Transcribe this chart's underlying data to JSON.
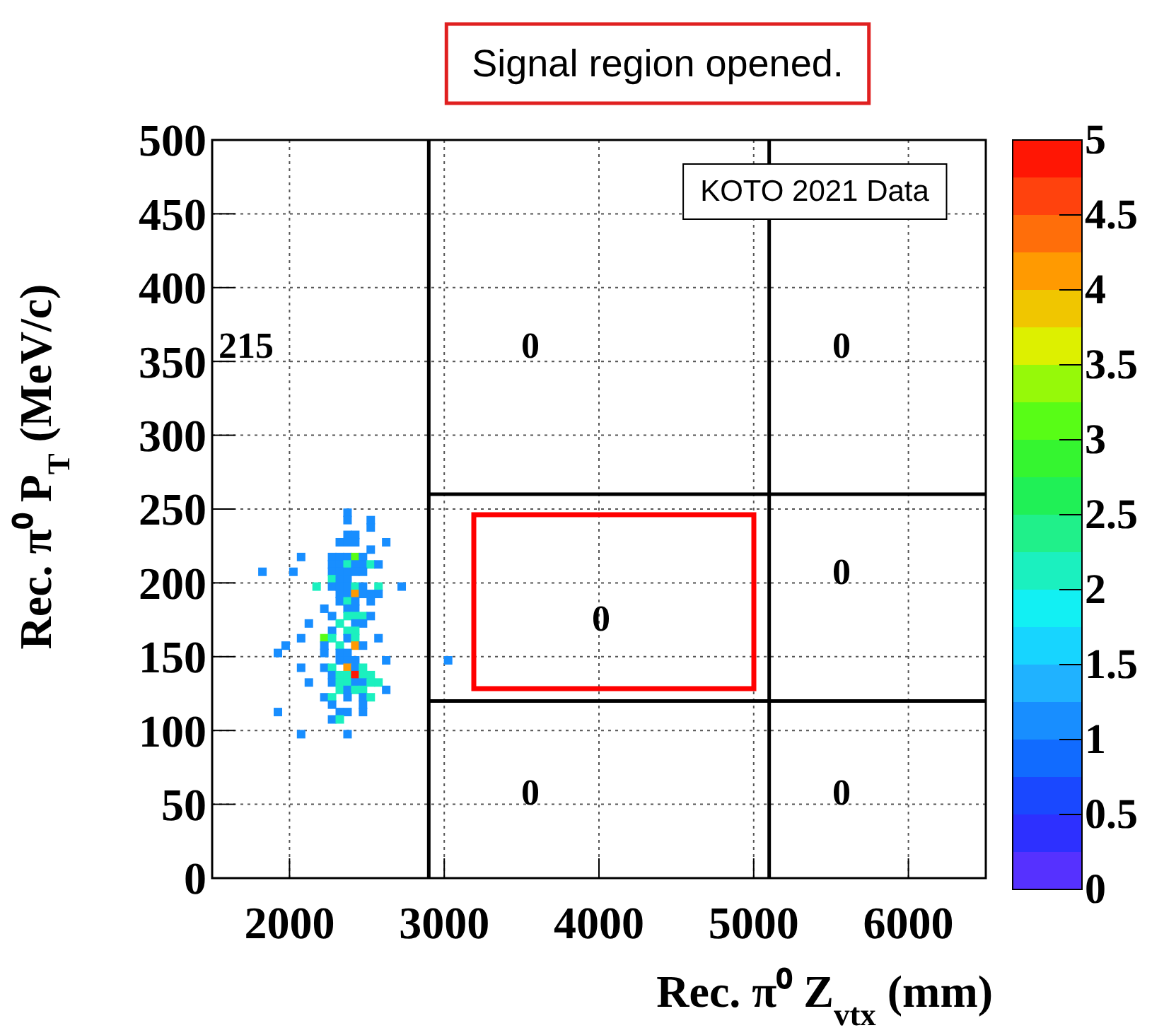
{
  "chart_data": {
    "type": "scatter",
    "title": "Signal region opened.",
    "xlabel": "Rec. π⁰ Z$_{vtx}$ (mm)",
    "ylabel": "Rec. π⁰ P$_{T}$ (MeV/c)",
    "xlim": [
      1500,
      6500
    ],
    "xticks": [
      2000,
      3000,
      4000,
      5000,
      6000
    ],
    "ylim": [
      0,
      500
    ],
    "yticks": [
      0,
      50,
      100,
      150,
      200,
      250,
      300,
      350,
      400,
      450,
      500
    ],
    "clim": [
      0,
      5
    ],
    "cticks": [
      0,
      0.5,
      1,
      1.5,
      2,
      2.5,
      3,
      3.5,
      4,
      4.5,
      5
    ],
    "grid": true,
    "series": [
      {
        "type": "scatter",
        "marker": "square",
        "x": [
          2375,
          2375,
          2525,
          2525,
          2375,
          2425,
          2325,
          2375,
          2425,
          2625,
          2525,
          2075,
          2275,
          2325,
          2375,
          2425,
          2475,
          2275,
          2325,
          2375,
          2425,
          2475,
          2525,
          2575,
          1825,
          2025,
          2275,
          2325,
          2375,
          2425,
          2475,
          2275,
          2325,
          2375,
          2175,
          2275,
          2325,
          2375,
          2425,
          2475,
          2575,
          2725,
          2325,
          2375,
          2425,
          2475,
          2525,
          2575,
          2325,
          2375,
          2425,
          2525,
          2225,
          2375,
          2425,
          2275,
          2375,
          2425,
          2475,
          2525,
          2125,
          2325,
          2425,
          2475,
          2275,
          2375,
          2425,
          2075,
          2225,
          2275,
          2375,
          2425,
          2575,
          1975,
          2225,
          2325,
          2425,
          2475,
          1925,
          2225,
          2325,
          2375,
          2625,
          2325,
          2375,
          2425,
          3025,
          2075,
          2225,
          2275,
          2375,
          2425,
          2475,
          2275,
          2325,
          2375,
          2425,
          2475,
          2525,
          2125,
          2275,
          2325,
          2375,
          2425,
          2475,
          2525,
          2575,
          2325,
          2375,
          2425,
          2475,
          2625,
          2225,
          2275,
          2375,
          2475,
          2525,
          2275,
          2475,
          1925,
          2325,
          2375,
          2475,
          2275,
          2325,
          2075,
          2375
        ],
        "values": [
          247.5,
          242.5,
          242.5,
          237.5,
          232.5,
          232.5,
          227.5,
          227.5,
          227.5,
          227.5,
          222.5,
          217.5,
          217.5,
          217.5,
          217.5,
          217.5,
          217.5,
          212.5,
          212.5,
          212.5,
          212.5,
          212.5,
          212.5,
          212.5,
          207.5,
          207.5,
          207.5,
          207.5,
          207.5,
          207.5,
          207.5,
          202.5,
          202.5,
          202.5,
          197.5,
          197.5,
          197.5,
          197.5,
          197.5,
          197.5,
          197.5,
          197.5,
          192.5,
          192.5,
          192.5,
          192.5,
          192.5,
          192.5,
          187.5,
          187.5,
          187.5,
          187.5,
          182.5,
          182.5,
          182.5,
          177.5,
          177.5,
          177.5,
          177.5,
          177.5,
          172.5,
          172.5,
          172.5,
          172.5,
          167.5,
          167.5,
          167.5,
          162.5,
          162.5,
          162.5,
          162.5,
          162.5,
          162.5,
          157.5,
          157.5,
          157.5,
          157.5,
          157.5,
          152.5,
          152.5,
          152.5,
          152.5,
          147.5,
          147.5,
          147.5,
          147.5,
          147.5,
          142.5,
          142.5,
          142.5,
          142.5,
          142.5,
          142.5,
          137.5,
          137.5,
          137.5,
          137.5,
          137.5,
          137.5,
          132.5,
          132.5,
          132.5,
          132.5,
          132.5,
          132.5,
          132.5,
          132.5,
          127.5,
          127.5,
          127.5,
          127.5,
          127.5,
          122.5,
          122.5,
          122.5,
          122.5,
          122.5,
          117.5,
          117.5,
          112.5,
          112.5,
          112.5,
          112.5,
          107.5,
          107.5,
          97.5,
          97.5
        ],
        "cvalues": [
          1,
          1,
          1,
          1,
          1,
          1,
          1,
          1,
          1,
          1,
          1,
          1,
          1,
          1,
          1,
          3,
          1,
          1,
          1,
          2,
          1,
          1,
          2,
          1,
          1,
          1,
          1,
          1,
          1,
          1,
          1,
          2,
          1,
          1,
          2,
          1,
          1,
          1,
          2,
          1,
          2,
          1,
          1,
          1,
          4,
          1,
          1,
          1,
          1,
          2,
          1,
          1,
          1,
          1,
          1,
          1,
          2,
          2,
          2,
          1,
          1,
          2,
          1,
          1,
          1,
          2,
          2,
          1,
          3,
          2,
          1,
          2,
          1,
          1,
          1,
          2,
          4,
          1,
          1,
          1,
          1,
          1,
          1,
          1,
          1,
          1,
          1,
          1,
          1,
          2,
          4,
          1,
          2,
          1,
          2,
          2,
          5,
          2,
          2,
          1,
          1,
          2,
          2,
          1,
          1,
          2,
          2,
          2,
          1,
          2,
          2,
          1,
          1,
          2,
          1,
          1,
          2,
          1,
          1,
          1,
          1,
          1,
          1,
          1,
          2,
          1,
          1
        ]
      }
    ],
    "ref_lines": [
      {
        "axis": "x",
        "value": 2900,
        "color": "#000000"
      },
      {
        "axis": "x",
        "value": 5100,
        "color": "#000000"
      },
      {
        "axis": "y",
        "value": 260,
        "color": "#000000"
      },
      {
        "axis": "y",
        "value": 120,
        "color": "#000000"
      }
    ],
    "annotations": [
      "KOTO 2021 Data",
      "215",
      "0",
      "0",
      "0",
      "0",
      "0",
      "0"
    ]
  }
}
